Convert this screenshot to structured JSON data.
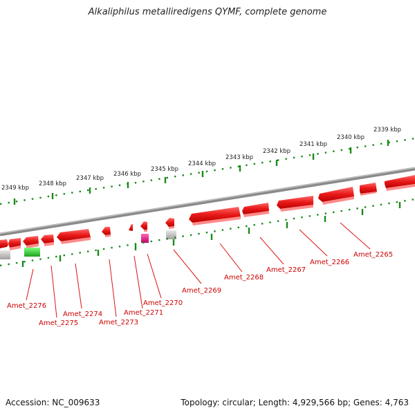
{
  "title": "Alkaliphilus metalliredigens QYMF, complete genome",
  "footer": {
    "accession": "Accession: NC_009633",
    "topology": "Topology: circular; Length: 4,929,566 bp; Genes: 4,763"
  },
  "colors": {
    "cds_forward": "#ee1c1c",
    "gene_gray": "#b8b8b8",
    "rna_green": "#33cc33",
    "rna_magenta": "#e0238c",
    "label_red": "#cc0000",
    "scale_green": "#1a8a1a",
    "backbone_gray": "#8a8a8a"
  },
  "kbp_labels": [
    "2349 kbp",
    "2348 kbp",
    "2347 kbp",
    "2346 kbp",
    "2345 kbp",
    "2344 kbp",
    "2343 kbp",
    "2342 kbp",
    "2341 kbp",
    "2340 kbp",
    "2339 kbp"
  ],
  "gene_labels": [
    "Amet_2276",
    "Amet_2275",
    "Amet_2274",
    "Amet_2273",
    "Amet_2271",
    "Amet_2270",
    "Amet_2269",
    "Amet_2268",
    "Amet_2267",
    "Amet_2266",
    "Amet_2265"
  ]
}
